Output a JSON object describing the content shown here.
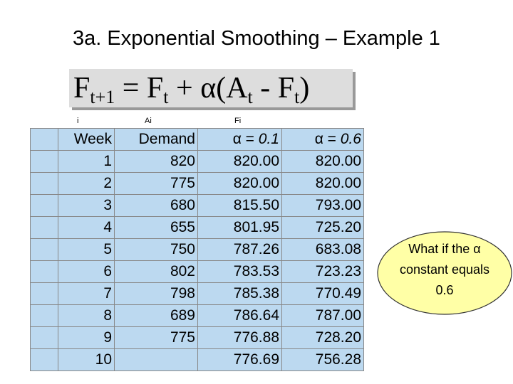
{
  "title": "3a. Exponential Smoothing – Example  1",
  "formula": [
    "F",
    "t+1",
    " = F",
    "t",
    " + α(A",
    "t",
    " - F",
    "t",
    ")"
  ],
  "column_labels": [
    "i",
    "Ai",
    "Fi"
  ],
  "table": {
    "header": [
      "Week",
      "Demand"
    ],
    "alpha_headers": [
      {
        "label": "α =",
        "value": "0.1"
      },
      {
        "label": "α =",
        "value": "0.6"
      }
    ],
    "rows": [
      [
        "1",
        "820",
        "820.00",
        "820.00"
      ],
      [
        "2",
        "775",
        "820.00",
        "820.00"
      ],
      [
        "3",
        "680",
        "815.50",
        "793.00"
      ],
      [
        "4",
        "655",
        "801.95",
        "725.20"
      ],
      [
        "5",
        "750",
        "787.26",
        "683.08"
      ],
      [
        "6",
        "802",
        "783.53",
        "723.23"
      ],
      [
        "7",
        "798",
        "785.38",
        "770.49"
      ],
      [
        "8",
        "689",
        "786.64",
        "787.00"
      ],
      [
        "9",
        "775",
        "776.88",
        "728.20"
      ],
      [
        "10",
        null,
        "776.69",
        "756.28"
      ]
    ]
  },
  "callout": "What if the α constant equals 0.6"
}
